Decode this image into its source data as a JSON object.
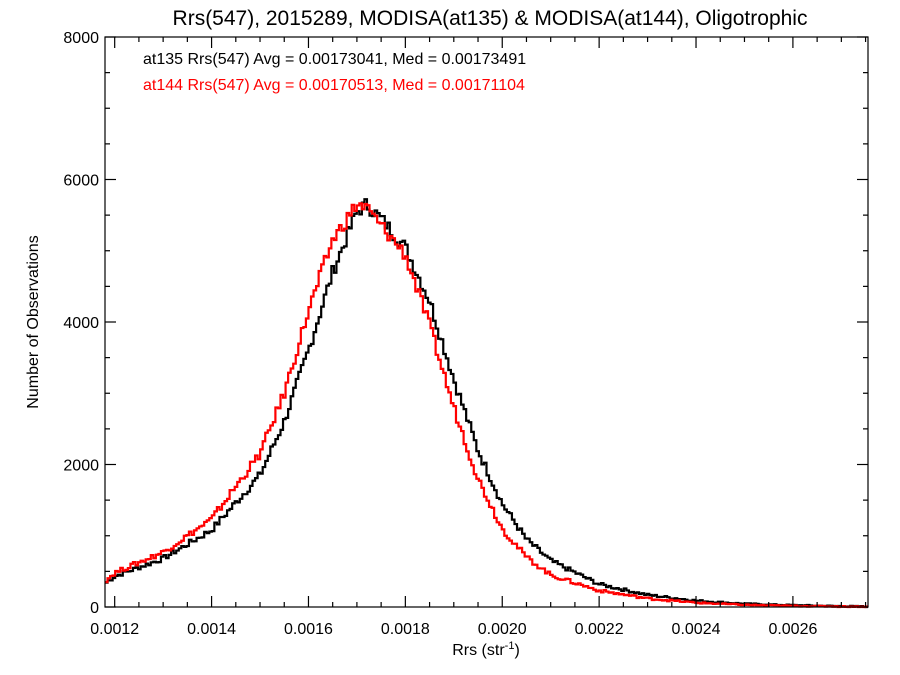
{
  "chart_data": {
    "type": "line",
    "step": true,
    "title": "Rrs(547), 2015289, MODISA(at135) & MODISA(at144), Oligotrophic",
    "xlabel": "Rrs (str",
    "xlabel_sup": "-1",
    "xlabel_end": ")",
    "ylabel": "Number of Observations",
    "xlim": [
      0.00118,
      0.002755
    ],
    "ylim": [
      0,
      8000
    ],
    "xticks": [
      0.0012,
      0.0014,
      0.0016,
      0.0018,
      0.002,
      0.0022,
      0.0024,
      0.0026
    ],
    "xtick_labels": [
      "0.0012",
      "0.0014",
      "0.0016",
      "0.0018",
      "0.0020",
      "0.0022",
      "0.0024",
      "0.0026"
    ],
    "yticks": [
      0,
      2000,
      4000,
      6000,
      8000
    ],
    "ytick_labels": [
      "0",
      "2000",
      "4000",
      "6000",
      "8000"
    ],
    "grid": false,
    "annotations": [
      {
        "text": "at135 Rrs(547) Avg = 0.00173041, Med = 0.00173491",
        "color": "#000000"
      },
      {
        "text": "at144 Rrs(547) Avg = 0.00170513, Med = 0.00171104",
        "color": "#ff0000"
      }
    ],
    "series": [
      {
        "color": "#000000",
        "x": [
          0.00118,
          0.0012,
          0.0013,
          0.0014,
          0.0015,
          0.00155,
          0.0016,
          0.00165,
          0.0017,
          0.00172,
          0.00175,
          0.0018,
          0.00185,
          0.0019,
          0.00195,
          0.002,
          0.00205,
          0.0021,
          0.0022,
          0.0023,
          0.0024,
          0.0025,
          0.0026,
          0.00275
        ],
        "y": [
          330,
          430,
          680,
          1080,
          1850,
          2600,
          3600,
          4700,
          5550,
          5650,
          5450,
          5050,
          4300,
          3200,
          2200,
          1450,
          950,
          650,
          320,
          170,
          90,
          45,
          25,
          5
        ]
      },
      {
        "color": "#ff0000",
        "x": [
          0.00118,
          0.0012,
          0.0013,
          0.0014,
          0.0015,
          0.00155,
          0.0016,
          0.00165,
          0.0017,
          0.00172,
          0.00175,
          0.0018,
          0.00185,
          0.0019,
          0.00195,
          0.002,
          0.00205,
          0.0021,
          0.0022,
          0.0023,
          0.0024,
          0.0025,
          0.0026,
          0.00275
        ],
        "y": [
          360,
          480,
          770,
          1230,
          2150,
          3000,
          4150,
          5150,
          5650,
          5600,
          5350,
          4950,
          3950,
          2800,
          1800,
          1100,
          700,
          450,
          230,
          120,
          60,
          30,
          15,
          3
        ]
      }
    ]
  }
}
